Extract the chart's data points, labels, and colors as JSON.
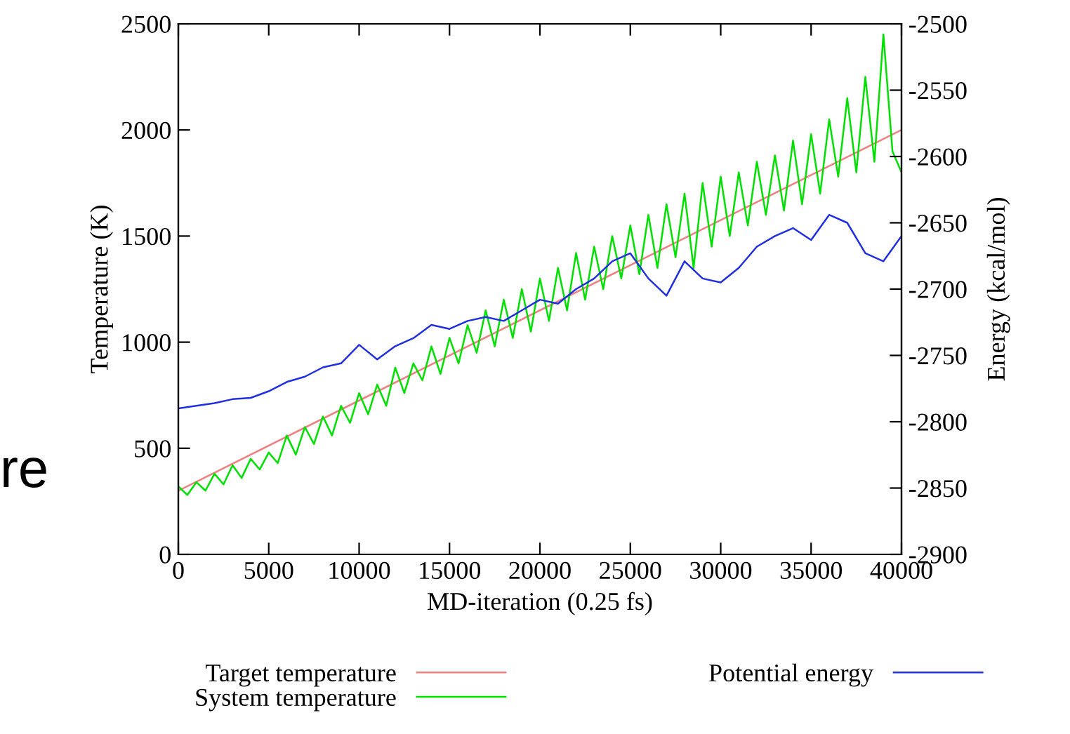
{
  "chart_data": {
    "type": "line",
    "xlabel": "MD-iteration (0.25 fs)",
    "ylabel": "Temperature (K)",
    "y2label": "Energy (kcal/mol)",
    "annotations": [
      "re"
    ],
    "xlim": [
      0,
      40000
    ],
    "xticks": [
      0,
      5000,
      10000,
      15000,
      20000,
      25000,
      30000,
      35000,
      40000
    ],
    "ylim": [
      0,
      2500
    ],
    "yticks": [
      0,
      500,
      1000,
      1500,
      2000,
      2500
    ],
    "y2lim": [
      -2900,
      -2500
    ],
    "y2ticks": [
      -2900,
      -2850,
      -2800,
      -2750,
      -2700,
      -2650,
      -2600,
      -2550,
      -2500
    ],
    "legend": "bottom",
    "grid": false,
    "series": [
      {
        "name": "Target temperature",
        "color": "#f08080",
        "x": [
          0,
          40000
        ],
        "values": [
          300,
          2000
        ]
      },
      {
        "name": "System temperature",
        "color": "#00e000",
        "x": [
          0,
          500,
          1000,
          1500,
          2000,
          2500,
          3000,
          3500,
          4000,
          4500,
          5000,
          5500,
          6000,
          6500,
          7000,
          7500,
          8000,
          8500,
          9000,
          9500,
          10000,
          10500,
          11000,
          11500,
          12000,
          12500,
          13000,
          13500,
          14000,
          14500,
          15000,
          15500,
          16000,
          16500,
          17000,
          17500,
          18000,
          18500,
          19000,
          19500,
          20000,
          20500,
          21000,
          21500,
          22000,
          22500,
          23000,
          23500,
          24000,
          24500,
          25000,
          25500,
          26000,
          26500,
          27000,
          27500,
          28000,
          28500,
          29000,
          29500,
          30000,
          30500,
          31000,
          31500,
          32000,
          32500,
          33000,
          33500,
          34000,
          34500,
          35000,
          35500,
          36000,
          36500,
          37000,
          37500,
          38000,
          38500,
          39000,
          39500,
          40000
        ],
        "values": [
          320,
          280,
          340,
          300,
          380,
          330,
          420,
          360,
          450,
          400,
          480,
          430,
          560,
          470,
          600,
          520,
          650,
          560,
          700,
          620,
          760,
          660,
          800,
          700,
          880,
          760,
          900,
          820,
          980,
          850,
          1020,
          900,
          1080,
          950,
          1150,
          980,
          1200,
          1020,
          1250,
          1050,
          1300,
          1100,
          1350,
          1150,
          1420,
          1200,
          1450,
          1250,
          1500,
          1300,
          1550,
          1320,
          1600,
          1350,
          1650,
          1400,
          1700,
          1350,
          1750,
          1450,
          1780,
          1500,
          1800,
          1550,
          1850,
          1600,
          1880,
          1620,
          1950,
          1650,
          1980,
          1700,
          2050,
          1780,
          2150,
          1800,
          2250,
          1850,
          2450,
          1900,
          1800
        ]
      },
      {
        "name": "Potential energy",
        "color": "#2030e0",
        "axis": "y2",
        "x": [
          0,
          1000,
          2000,
          3000,
          4000,
          5000,
          6000,
          7000,
          8000,
          9000,
          10000,
          11000,
          12000,
          13000,
          14000,
          15000,
          16000,
          17000,
          18000,
          19000,
          20000,
          21000,
          22000,
          23000,
          24000,
          25000,
          26000,
          27000,
          28000,
          29000,
          30000,
          31000,
          32000,
          33000,
          34000,
          35000,
          36000,
          37000,
          38000,
          39000,
          40000
        ],
        "values": [
          -2790,
          -2788,
          -2786,
          -2783,
          -2782,
          -2777,
          -2770,
          -2766,
          -2759,
          -2756,
          -2742,
          -2753,
          -2743,
          -2737,
          -2727,
          -2730,
          -2724,
          -2721,
          -2724,
          -2716,
          -2708,
          -2711,
          -2700,
          -2692,
          -2679,
          -2673,
          -2692,
          -2705,
          -2679,
          -2692,
          -2695,
          -2684,
          -2668,
          -2660,
          -2654,
          -2663,
          -2644,
          -2650,
          -2673,
          -2679,
          -2660
        ]
      }
    ]
  }
}
